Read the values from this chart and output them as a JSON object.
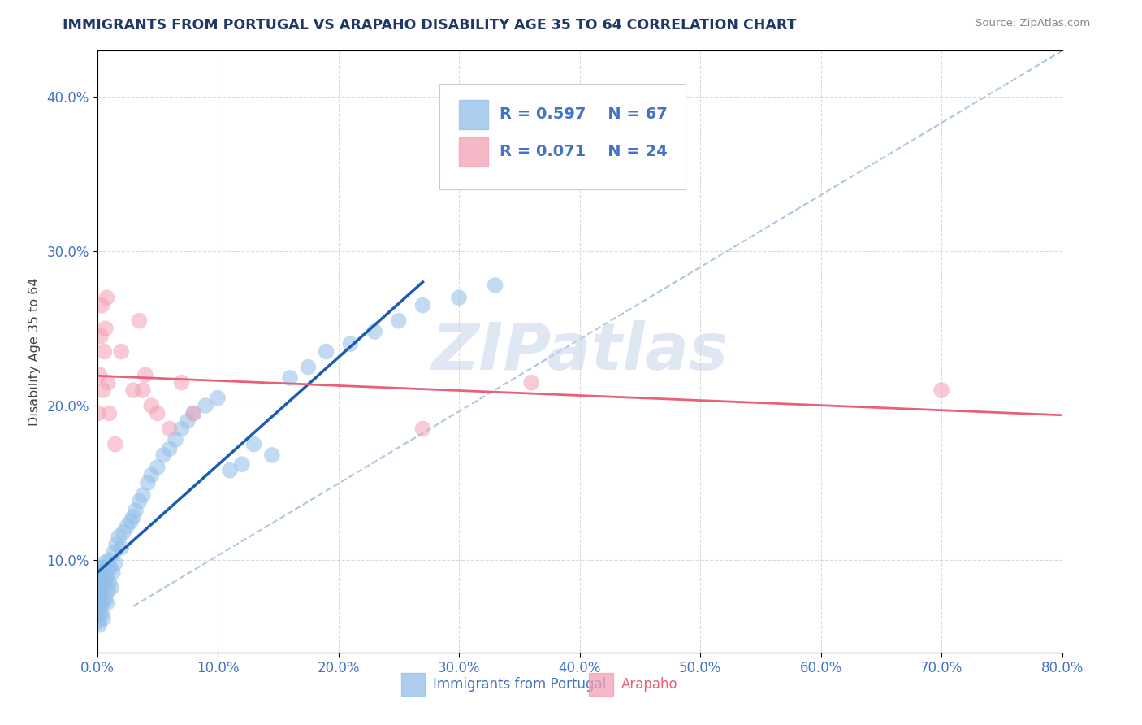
{
  "title": "IMMIGRANTS FROM PORTUGAL VS ARAPAHO DISABILITY AGE 35 TO 64 CORRELATION CHART",
  "source_text": "Source: ZipAtlas.com",
  "ylabel": "Disability Age 35 to 64",
  "xlim": [
    0.0,
    0.8
  ],
  "ylim": [
    0.04,
    0.43
  ],
  "xticks": [
    0.0,
    0.1,
    0.2,
    0.3,
    0.4,
    0.5,
    0.6,
    0.7,
    0.8
  ],
  "yticks": [
    0.1,
    0.2,
    0.3,
    0.4
  ],
  "r_blue": 0.597,
  "n_blue": 67,
  "r_pink": 0.071,
  "n_pink": 24,
  "blue_color": "#92BFE8",
  "pink_color": "#F2A0B5",
  "blue_line_color": "#1A5CB0",
  "pink_line_color": "#E8607A",
  "axis_label_color": "#4472C4",
  "title_color": "#1F3864",
  "watermark_color": "#C8D8EA",
  "background_color": "#FFFFFF",
  "grid_color": "#CCCCCC",
  "blue_scatter_x": [
    0.001,
    0.001,
    0.001,
    0.001,
    0.001,
    0.001,
    0.002,
    0.002,
    0.002,
    0.002,
    0.002,
    0.003,
    0.003,
    0.003,
    0.004,
    0.004,
    0.005,
    0.005,
    0.005,
    0.006,
    0.006,
    0.007,
    0.007,
    0.008,
    0.008,
    0.009,
    0.01,
    0.01,
    0.011,
    0.012,
    0.013,
    0.014,
    0.015,
    0.016,
    0.018,
    0.02,
    0.022,
    0.025,
    0.028,
    0.03,
    0.032,
    0.035,
    0.038,
    0.042,
    0.045,
    0.05,
    0.055,
    0.06,
    0.065,
    0.07,
    0.075,
    0.08,
    0.09,
    0.1,
    0.11,
    0.12,
    0.13,
    0.145,
    0.16,
    0.175,
    0.19,
    0.21,
    0.23,
    0.25,
    0.27,
    0.3,
    0.33
  ],
  "blue_scatter_y": [
    0.082,
    0.075,
    0.068,
    0.09,
    0.095,
    0.06,
    0.072,
    0.065,
    0.078,
    0.085,
    0.058,
    0.07,
    0.08,
    0.092,
    0.065,
    0.088,
    0.073,
    0.095,
    0.062,
    0.085,
    0.098,
    0.075,
    0.088,
    0.09,
    0.072,
    0.08,
    0.1,
    0.085,
    0.095,
    0.082,
    0.092,
    0.105,
    0.098,
    0.11,
    0.115,
    0.108,
    0.118,
    0.122,
    0.125,
    0.128,
    0.132,
    0.138,
    0.142,
    0.15,
    0.155,
    0.16,
    0.168,
    0.172,
    0.178,
    0.185,
    0.19,
    0.195,
    0.2,
    0.205,
    0.158,
    0.162,
    0.175,
    0.168,
    0.218,
    0.225,
    0.235,
    0.24,
    0.248,
    0.255,
    0.265,
    0.27,
    0.278
  ],
  "pink_scatter_x": [
    0.001,
    0.002,
    0.003,
    0.004,
    0.005,
    0.006,
    0.007,
    0.008,
    0.009,
    0.01,
    0.015,
    0.02,
    0.03,
    0.035,
    0.038,
    0.04,
    0.045,
    0.05,
    0.06,
    0.07,
    0.08,
    0.27,
    0.36,
    0.7
  ],
  "pink_scatter_y": [
    0.195,
    0.22,
    0.245,
    0.265,
    0.21,
    0.235,
    0.25,
    0.27,
    0.215,
    0.195,
    0.175,
    0.235,
    0.21,
    0.255,
    0.21,
    0.22,
    0.2,
    0.195,
    0.185,
    0.215,
    0.195,
    0.185,
    0.215,
    0.21
  ],
  "diag_color": "#9AB8D8"
}
